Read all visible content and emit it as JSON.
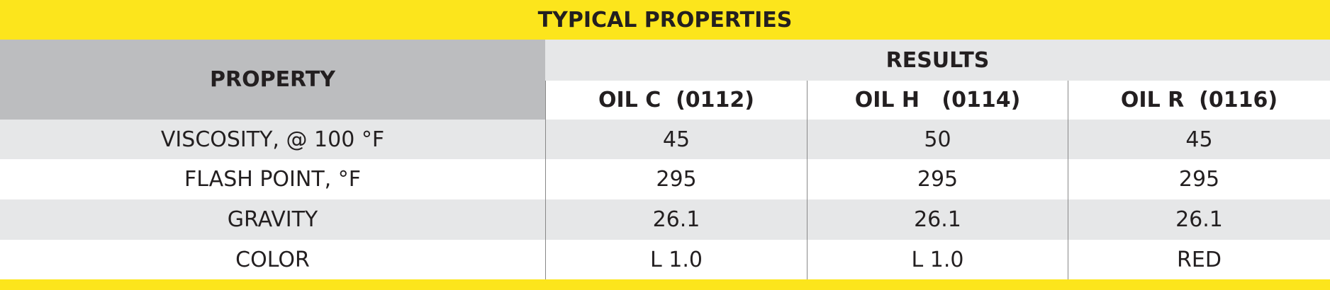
{
  "title": "TYPICAL PROPERTIES",
  "header": {
    "property": "PROPERTY",
    "results": "RESULTS",
    "columns": [
      "OIL C  (0112)",
      "OIL H   (0114)",
      "OIL R  (0116)"
    ]
  },
  "rows": [
    {
      "property": "VISCOSITY, @ 100 °F",
      "values": [
        "45",
        "50",
        "45"
      ]
    },
    {
      "property": "FLASH POINT, °F",
      "values": [
        "295",
        "295",
        "295"
      ]
    },
    {
      "property": "GRAVITY",
      "values": [
        "26.1",
        "26.1",
        "26.1"
      ]
    },
    {
      "property": "COLOR",
      "values": [
        "L 1.0",
        "L 1.0",
        "RED"
      ]
    }
  ]
}
